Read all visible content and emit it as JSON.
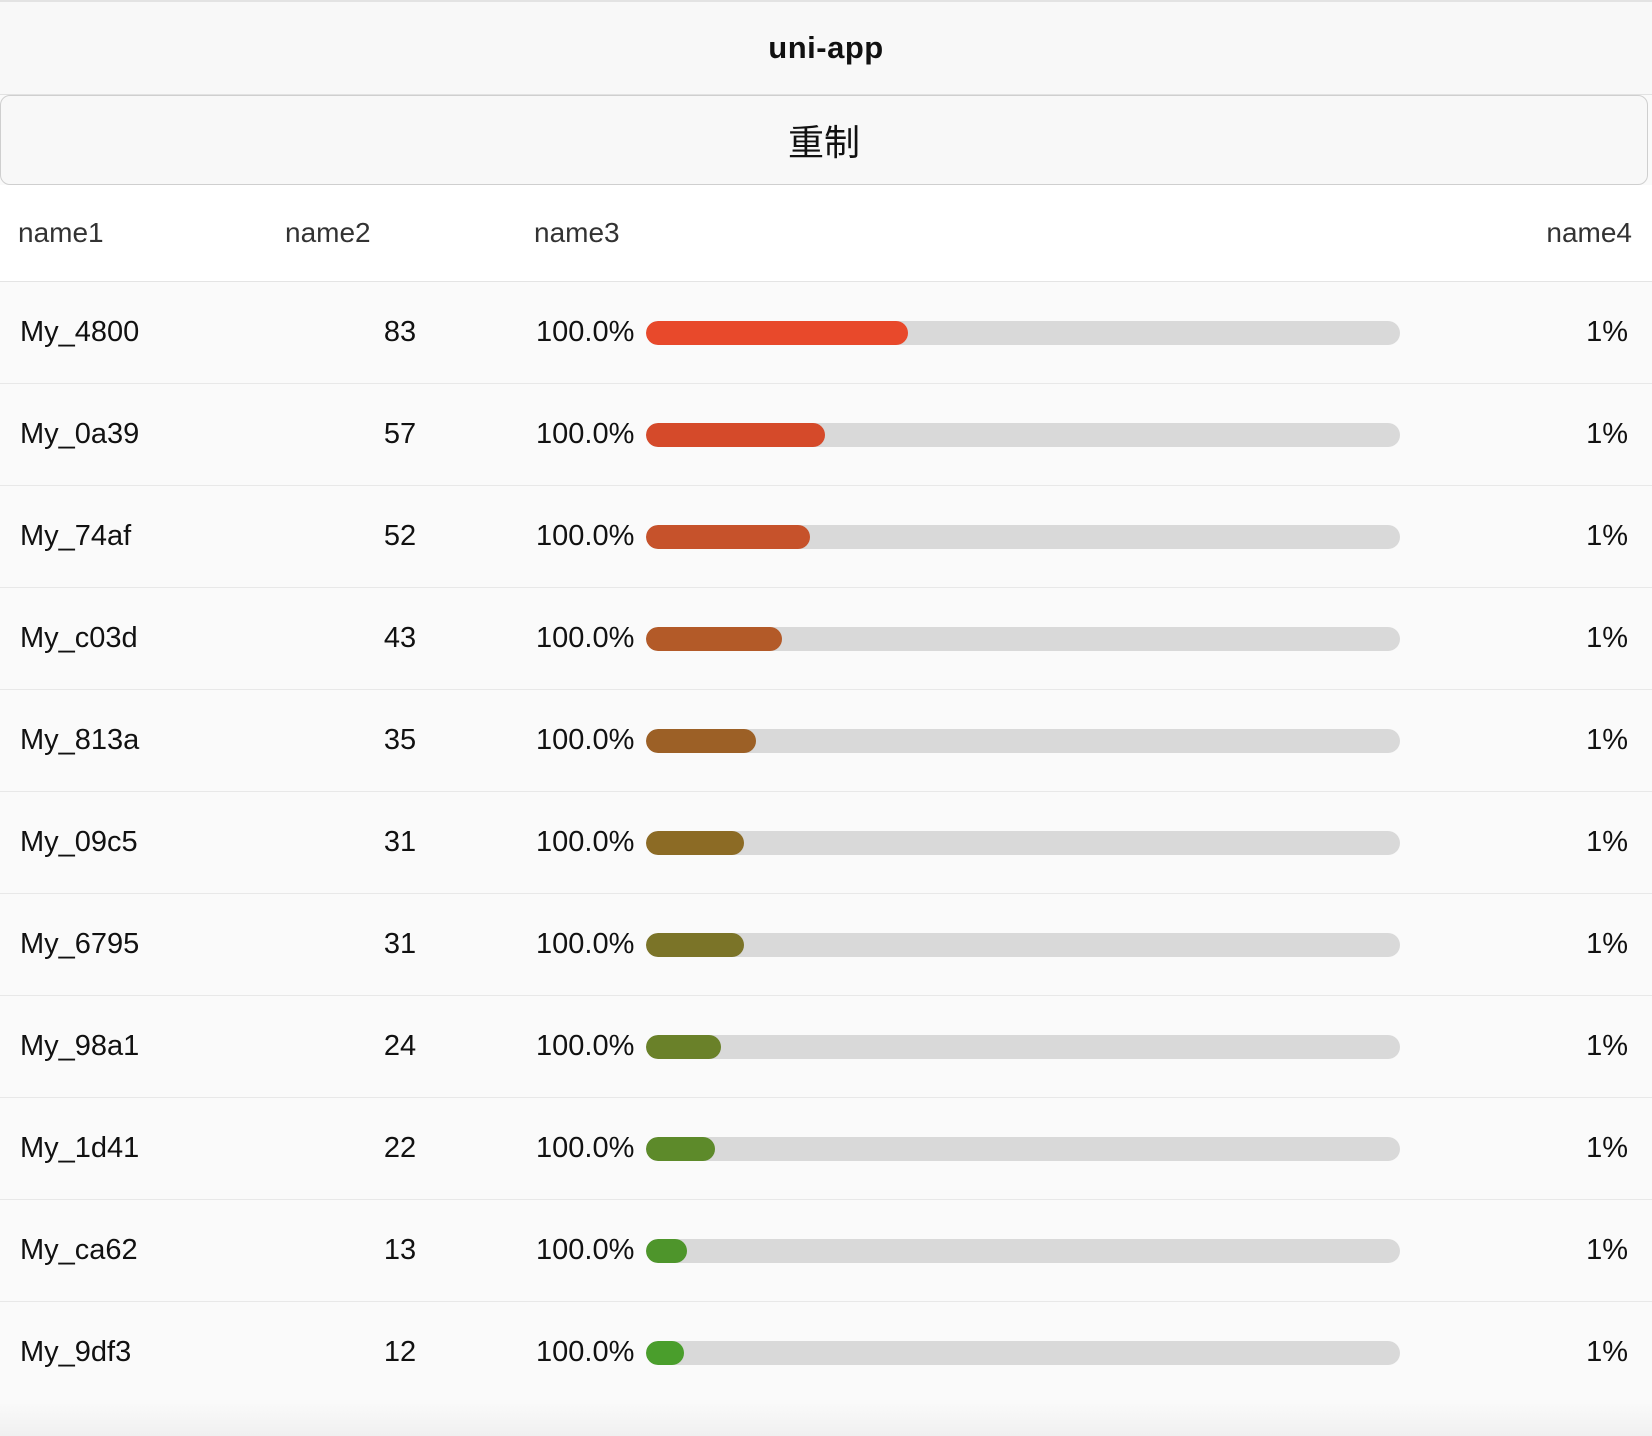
{
  "navbar": {
    "title": "uni-app"
  },
  "reset_button": {
    "label": "重制"
  },
  "table": {
    "headers": [
      "name1",
      "name2",
      "name3",
      "name4"
    ],
    "rows": [
      {
        "name1": "My_4800",
        "name2": "83",
        "name3": "100.0%",
        "fill": 0.347,
        "color": "#e8492b",
        "name4": "1%"
      },
      {
        "name1": "My_0a39",
        "name2": "57",
        "name3": "100.0%",
        "fill": 0.238,
        "color": "#d54a2a",
        "name4": "1%"
      },
      {
        "name1": "My_74af",
        "name2": "52",
        "name3": "100.0%",
        "fill": 0.217,
        "color": "#c6522b",
        "name4": "1%"
      },
      {
        "name1": "My_c03d",
        "name2": "43",
        "name3": "100.0%",
        "fill": 0.18,
        "color": "#b35a28",
        "name4": "1%"
      },
      {
        "name1": "My_813a",
        "name2": "35",
        "name3": "100.0%",
        "fill": 0.146,
        "color": "#9c6026",
        "name4": "1%"
      },
      {
        "name1": "My_09c5",
        "name2": "31",
        "name3": "100.0%",
        "fill": 0.13,
        "color": "#8c6b25",
        "name4": "1%"
      },
      {
        "name1": "My_6795",
        "name2": "31",
        "name3": "100.0%",
        "fill": 0.13,
        "color": "#7b7428",
        "name4": "1%"
      },
      {
        "name1": "My_98a1",
        "name2": "24",
        "name3": "100.0%",
        "fill": 0.1,
        "color": "#6a8129",
        "name4": "1%"
      },
      {
        "name1": "My_1d41",
        "name2": "22",
        "name3": "100.0%",
        "fill": 0.092,
        "color": "#5d8a2a",
        "name4": "1%"
      },
      {
        "name1": "My_ca62",
        "name2": "13",
        "name3": "100.0%",
        "fill": 0.054,
        "color": "#4e952b",
        "name4": "1%"
      },
      {
        "name1": "My_9df3",
        "name2": "12",
        "name3": "100.0%",
        "fill": 0.05,
        "color": "#4a9e2c",
        "name4": "1%"
      }
    ]
  }
}
